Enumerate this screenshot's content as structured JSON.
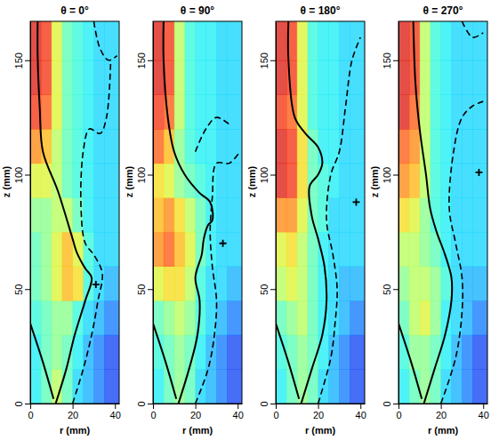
{
  "chart_data": [
    {
      "type": "heatmap",
      "title": "θ = 0°",
      "x_label": "r (mm)",
      "y_label": "z (mm)",
      "xlim": [
        0,
        42
      ],
      "ylim": [
        0,
        167
      ],
      "xticks": [
        0,
        20,
        40
      ],
      "yticks": [
        0,
        50,
        100,
        150
      ],
      "clim": [
        0,
        1
      ],
      "x_edges": [
        0,
        5,
        10,
        15,
        20,
        25,
        30,
        35,
        42
      ],
      "y_edges": [
        0,
        15,
        30,
        45,
        60,
        75,
        90,
        105,
        120,
        135,
        150,
        167
      ],
      "cells": [
        [
          0.35,
          0.45,
          0.55,
          0.45,
          0.3,
          0.25,
          0.2,
          0.15
        ],
        [
          0.35,
          0.45,
          0.5,
          0.45,
          0.35,
          0.25,
          0.2,
          0.15
        ],
        [
          0.4,
          0.45,
          0.5,
          0.5,
          0.4,
          0.3,
          0.25,
          0.2
        ],
        [
          0.45,
          0.5,
          0.6,
          0.7,
          0.65,
          0.4,
          0.3,
          0.25
        ],
        [
          0.45,
          0.5,
          0.6,
          0.7,
          0.6,
          0.4,
          0.3,
          0.3
        ],
        [
          0.5,
          0.5,
          0.55,
          0.55,
          0.45,
          0.35,
          0.3,
          0.3
        ],
        [
          0.6,
          0.6,
          0.55,
          0.45,
          0.4,
          0.35,
          0.3,
          0.3
        ],
        [
          0.75,
          0.7,
          0.55,
          0.45,
          0.4,
          0.35,
          0.3,
          0.3
        ],
        [
          0.85,
          0.8,
          0.6,
          0.45,
          0.4,
          0.35,
          0.3,
          0.3
        ],
        [
          0.9,
          0.85,
          0.6,
          0.45,
          0.4,
          0.35,
          0.3,
          0.3
        ],
        [
          0.9,
          0.85,
          0.6,
          0.45,
          0.4,
          0.35,
          0.3,
          0.3
        ]
      ],
      "series": [
        {
          "type": "line",
          "line_style": "solid",
          "color": "#000000",
          "x": [
            12,
            17,
            21,
            26,
            29,
            26,
            22,
            20,
            13,
            6,
            4.5,
            3.5,
            3.5
          ],
          "values": [
            0,
            15,
            30,
            45,
            55,
            59,
            66,
            72,
            93,
            110,
            129,
            152,
            167
          ]
        },
        {
          "type": "line",
          "line_style": "solid",
          "color": "#000000",
          "x": [
            0,
            6,
            11
          ],
          "values": [
            35,
            18,
            2
          ]
        },
        {
          "type": "line",
          "line_style": "dashed",
          "color": "#000000",
          "x": [
            20,
            25,
            29,
            32,
            34,
            30,
            26,
            24,
            25,
            28,
            33,
            36,
            38
          ],
          "values": [
            0,
            15,
            30,
            45,
            57,
            65,
            70,
            85,
            110,
            120,
            118,
            125,
            150
          ]
        },
        {
          "type": "line",
          "line_style": "dashed",
          "color": "#000000",
          "x": [
            30,
            33,
            37,
            41
          ],
          "values": [
            167,
            155,
            150,
            152
          ]
        },
        {
          "type": "scatter",
          "marker": "plus",
          "color": "#000000",
          "x": [
            31
          ],
          "values": [
            52
          ]
        }
      ]
    },
    {
      "type": "heatmap",
      "title": "θ = 90°",
      "x_label": "r (mm)",
      "y_label": "z (mm)",
      "xlim": [
        0,
        42
      ],
      "ylim": [
        0,
        167
      ],
      "xticks": [
        0,
        20,
        40
      ],
      "yticks": [
        0,
        50,
        100,
        150
      ],
      "clim": [
        0,
        1
      ],
      "x_edges": [
        0,
        5,
        10,
        15,
        20,
        25,
        30,
        35,
        42
      ],
      "y_edges": [
        0,
        15,
        30,
        45,
        60,
        75,
        90,
        105,
        120,
        135,
        150,
        167
      ],
      "cells": [
        [
          0.35,
          0.45,
          0.5,
          0.45,
          0.3,
          0.25,
          0.2,
          0.15
        ],
        [
          0.4,
          0.45,
          0.5,
          0.45,
          0.35,
          0.25,
          0.2,
          0.15
        ],
        [
          0.45,
          0.5,
          0.55,
          0.5,
          0.4,
          0.3,
          0.25,
          0.2
        ],
        [
          0.6,
          0.65,
          0.65,
          0.55,
          0.4,
          0.3,
          0.3,
          0.25
        ],
        [
          0.75,
          0.8,
          0.7,
          0.6,
          0.45,
          0.35,
          0.3,
          0.3
        ],
        [
          0.7,
          0.75,
          0.65,
          0.55,
          0.45,
          0.35,
          0.3,
          0.3
        ],
        [
          0.65,
          0.6,
          0.5,
          0.45,
          0.4,
          0.35,
          0.3,
          0.3
        ],
        [
          0.8,
          0.7,
          0.5,
          0.4,
          0.35,
          0.35,
          0.3,
          0.3
        ],
        [
          0.85,
          0.8,
          0.55,
          0.4,
          0.35,
          0.35,
          0.3,
          0.3
        ],
        [
          0.9,
          0.85,
          0.55,
          0.4,
          0.35,
          0.35,
          0.3,
          0.3
        ],
        [
          0.9,
          0.85,
          0.55,
          0.4,
          0.35,
          0.35,
          0.3,
          0.3
        ]
      ],
      "series": [
        {
          "type": "line",
          "line_style": "solid",
          "color": "#000000",
          "x": [
            12,
            17,
            21,
            22,
            20,
            23,
            24,
            26,
            28,
            27,
            22,
            15,
            10,
            7,
            5,
            5
          ],
          "values": [
            0,
            15,
            30,
            45,
            55,
            65,
            72,
            78,
            80,
            88,
            92,
            100,
            110,
            125,
            150,
            167
          ]
        },
        {
          "type": "line",
          "line_style": "solid",
          "color": "#000000",
          "x": [
            0,
            6,
            11
          ],
          "values": [
            35,
            18,
            2
          ]
        },
        {
          "type": "line",
          "line_style": "dashed",
          "color": "#000000",
          "x": [
            20,
            26,
            29,
            30,
            28,
            27,
            28,
            30,
            36,
            41
          ],
          "values": [
            0,
            15,
            30,
            45,
            60,
            75,
            90,
            105,
            105,
            110
          ]
        },
        {
          "type": "line",
          "line_style": "dashed",
          "color": "#000000",
          "x": [
            20,
            25,
            30,
            36
          ],
          "values": [
            110,
            120,
            125,
            122
          ]
        },
        {
          "type": "scatter",
          "marker": "plus",
          "color": "#000000",
          "x": [
            33
          ],
          "values": [
            70
          ]
        }
      ]
    },
    {
      "type": "heatmap",
      "title": "θ = 180°",
      "x_label": "r (mm)",
      "y_label": "z (mm)",
      "xlim": [
        0,
        42
      ],
      "ylim": [
        0,
        167
      ],
      "xticks": [
        0,
        20,
        40
      ],
      "yticks": [
        0,
        50,
        100,
        150
      ],
      "clim": [
        0,
        1
      ],
      "x_edges": [
        0,
        5,
        10,
        15,
        20,
        25,
        30,
        35,
        42
      ],
      "y_edges": [
        0,
        15,
        30,
        45,
        60,
        75,
        90,
        105,
        120,
        135,
        150,
        167
      ],
      "cells": [
        [
          0.35,
          0.45,
          0.5,
          0.45,
          0.3,
          0.25,
          0.2,
          0.15
        ],
        [
          0.4,
          0.45,
          0.5,
          0.45,
          0.35,
          0.25,
          0.2,
          0.15
        ],
        [
          0.45,
          0.5,
          0.55,
          0.45,
          0.35,
          0.3,
          0.25,
          0.2
        ],
        [
          0.55,
          0.6,
          0.55,
          0.45,
          0.35,
          0.3,
          0.25,
          0.25
        ],
        [
          0.6,
          0.65,
          0.55,
          0.45,
          0.35,
          0.3,
          0.3,
          0.3
        ],
        [
          0.75,
          0.75,
          0.6,
          0.45,
          0.4,
          0.3,
          0.3,
          0.3
        ],
        [
          0.9,
          0.85,
          0.65,
          0.45,
          0.4,
          0.35,
          0.3,
          0.3
        ],
        [
          0.9,
          0.85,
          0.65,
          0.45,
          0.35,
          0.35,
          0.3,
          0.3
        ],
        [
          0.85,
          0.8,
          0.6,
          0.4,
          0.35,
          0.35,
          0.3,
          0.3
        ],
        [
          0.9,
          0.85,
          0.6,
          0.4,
          0.35,
          0.35,
          0.3,
          0.3
        ],
        [
          0.9,
          0.85,
          0.6,
          0.4,
          0.35,
          0.35,
          0.3,
          0.3
        ]
      ],
      "series": [
        {
          "type": "line",
          "line_style": "solid",
          "color": "#000000",
          "x": [
            12,
            17,
            22,
            24,
            23,
            20,
            17,
            16,
            20,
            22,
            20,
            14,
            9,
            6,
            6
          ],
          "values": [
            0,
            15,
            30,
            45,
            60,
            72,
            82,
            95,
            100,
            105,
            112,
            118,
            125,
            150,
            167
          ]
        },
        {
          "type": "line",
          "line_style": "solid",
          "color": "#000000",
          "x": [
            0,
            6,
            11
          ],
          "values": [
            35,
            18,
            2
          ]
        },
        {
          "type": "line",
          "line_style": "dashed",
          "color": "#000000",
          "x": [
            20,
            26,
            28,
            29,
            27,
            24,
            26,
            30,
            33,
            36,
            40
          ],
          "values": [
            0,
            20,
            35,
            50,
            65,
            80,
            100,
            110,
            130,
            150,
            160
          ]
        },
        {
          "type": "scatter",
          "marker": "plus",
          "color": "#000000",
          "x": [
            38
          ],
          "values": [
            88
          ]
        }
      ]
    },
    {
      "type": "heatmap",
      "title": "θ = 270°",
      "x_label": "r (mm)",
      "y_label": "z (mm)",
      "xlim": [
        0,
        42
      ],
      "ylim": [
        0,
        167
      ],
      "xticks": [
        0,
        20,
        40
      ],
      "yticks": [
        0,
        50,
        100,
        150
      ],
      "clim": [
        0,
        1
      ],
      "x_edges": [
        0,
        5,
        10,
        15,
        20,
        25,
        30,
        35,
        42
      ],
      "y_edges": [
        0,
        15,
        30,
        45,
        60,
        75,
        90,
        105,
        120,
        135,
        150,
        167
      ],
      "cells": [
        [
          0.35,
          0.45,
          0.5,
          0.45,
          0.3,
          0.25,
          0.2,
          0.15
        ],
        [
          0.4,
          0.5,
          0.5,
          0.45,
          0.35,
          0.25,
          0.2,
          0.15
        ],
        [
          0.45,
          0.55,
          0.6,
          0.5,
          0.35,
          0.3,
          0.25,
          0.2
        ],
        [
          0.5,
          0.55,
          0.55,
          0.5,
          0.4,
          0.3,
          0.25,
          0.25
        ],
        [
          0.55,
          0.55,
          0.5,
          0.45,
          0.35,
          0.3,
          0.3,
          0.3
        ],
        [
          0.65,
          0.6,
          0.5,
          0.4,
          0.35,
          0.3,
          0.3,
          0.3
        ],
        [
          0.75,
          0.7,
          0.55,
          0.4,
          0.35,
          0.3,
          0.3,
          0.3
        ],
        [
          0.8,
          0.75,
          0.55,
          0.4,
          0.35,
          0.3,
          0.3,
          0.3
        ],
        [
          0.9,
          0.8,
          0.55,
          0.4,
          0.35,
          0.3,
          0.3,
          0.3
        ],
        [
          0.9,
          0.85,
          0.55,
          0.4,
          0.35,
          0.3,
          0.3,
          0.3
        ],
        [
          0.9,
          0.85,
          0.55,
          0.4,
          0.35,
          0.3,
          0.3,
          0.3
        ]
      ],
      "series": [
        {
          "type": "line",
          "line_style": "solid",
          "color": "#000000",
          "x": [
            12,
            17,
            22,
            25,
            25,
            22,
            18,
            15,
            13,
            10,
            8,
            7
          ],
          "values": [
            0,
            15,
            30,
            45,
            55,
            65,
            75,
            85,
            100,
            120,
            140,
            167
          ]
        },
        {
          "type": "line",
          "line_style": "solid",
          "color": "#000000",
          "x": [
            0,
            6,
            11
          ],
          "values": [
            35,
            18,
            2
          ]
        },
        {
          "type": "line",
          "line_style": "dashed",
          "color": "#000000",
          "x": [
            20,
            27,
            30,
            30,
            27,
            24,
            26,
            30,
            35,
            40
          ],
          "values": [
            0,
            20,
            40,
            55,
            70,
            85,
            110,
            125,
            130,
            132
          ]
        },
        {
          "type": "line",
          "line_style": "dashed",
          "color": "#000000",
          "x": [
            30,
            35,
            40
          ],
          "values": [
            167,
            160,
            162
          ]
        },
        {
          "type": "scatter",
          "marker": "plus",
          "color": "#000000",
          "x": [
            38
          ],
          "values": [
            101
          ]
        }
      ]
    }
  ]
}
